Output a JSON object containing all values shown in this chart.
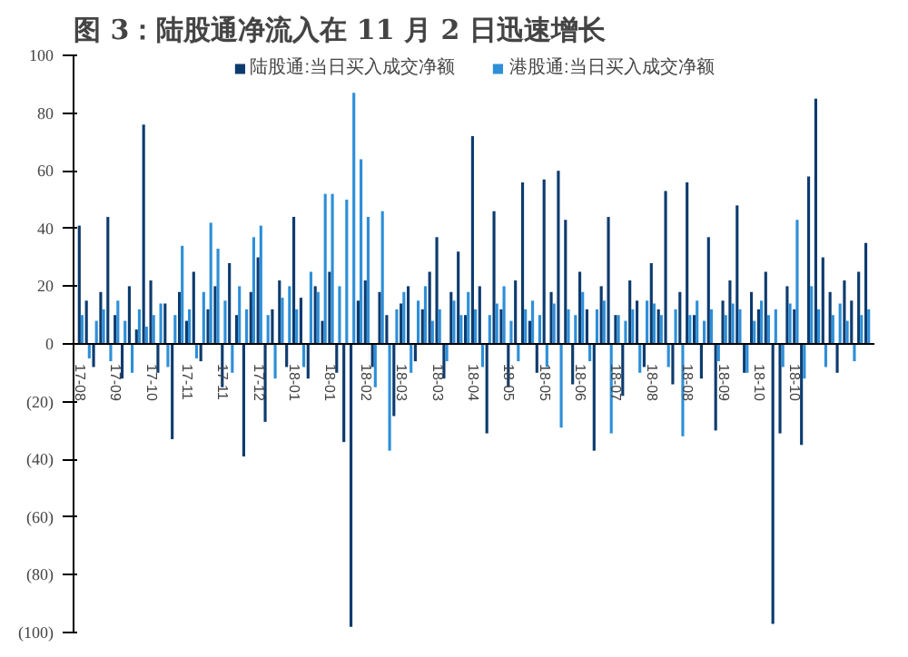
{
  "chart_data": {
    "type": "bar",
    "title": "图 3：陆股通净流入在 11 月 2 日迅速增长",
    "categories": [
      "17-08",
      null,
      null,
      null,
      null,
      "17-09",
      null,
      null,
      null,
      null,
      "17-10",
      null,
      null,
      null,
      null,
      "17-11",
      null,
      null,
      null,
      null,
      "17-11",
      null,
      null,
      null,
      null,
      "17-12",
      null,
      null,
      null,
      null,
      "18-01",
      null,
      null,
      null,
      null,
      "18-01",
      null,
      null,
      null,
      null,
      "18-02",
      null,
      null,
      null,
      null,
      "18-03",
      null,
      null,
      null,
      null,
      "18-03",
      null,
      null,
      null,
      null,
      "18-04",
      null,
      null,
      null,
      null,
      "18-05",
      null,
      null,
      null,
      null,
      "18-05",
      null,
      null,
      null,
      null,
      "18-06",
      null,
      null,
      null,
      null,
      "18-07",
      null,
      null,
      null,
      null,
      "18-08",
      null,
      null,
      null,
      null,
      "18-08",
      null,
      null,
      null,
      null,
      "18-09",
      null,
      null,
      null,
      null,
      "18-10",
      null,
      null,
      null,
      null,
      "18-10",
      null,
      null,
      null,
      null,
      null,
      null,
      null,
      null,
      null,
      null
    ],
    "series": [
      {
        "name": "陆股通:当日买入成交净额",
        "color": "#0d3b6e",
        "values": [
          41,
          15,
          -8,
          18,
          44,
          10,
          -12,
          20,
          5,
          76,
          22,
          -10,
          14,
          -33,
          18,
          8,
          25,
          -6,
          12,
          20,
          -15,
          28,
          10,
          -39,
          18,
          30,
          -27,
          12,
          22,
          -8,
          44,
          16,
          -12,
          20,
          8,
          25,
          -10,
          -34,
          -98,
          15,
          22,
          -8,
          18,
          10,
          -25,
          14,
          20,
          -6,
          12,
          25,
          37,
          -12,
          18,
          32,
          10,
          72,
          20,
          -31,
          46,
          12,
          -15,
          22,
          56,
          8,
          -10,
          57,
          18,
          60,
          43,
          -14,
          25,
          12,
          -37,
          20,
          44,
          10,
          -18,
          22,
          15,
          -8,
          28,
          12,
          53,
          -14,
          18,
          56,
          10,
          -12,
          37,
          -30,
          15,
          22,
          48,
          -10,
          18,
          12,
          25,
          -97,
          -31,
          20,
          12,
          -35,
          58,
          85,
          30,
          18,
          -10,
          22,
          15,
          25,
          35
        ]
      },
      {
        "name": "港股通:当日买入成交净额",
        "color": "#2e8fd8",
        "values": [
          10,
          -5,
          8,
          12,
          -6,
          15,
          8,
          -10,
          12,
          6,
          10,
          14,
          -8,
          10,
          34,
          12,
          -5,
          18,
          42,
          33,
          15,
          -10,
          20,
          12,
          37,
          41,
          10,
          -12,
          16,
          20,
          12,
          -8,
          25,
          18,
          52,
          52,
          20,
          50,
          87,
          64,
          44,
          -15,
          46,
          -37,
          12,
          18,
          -10,
          15,
          20,
          8,
          12,
          -6,
          15,
          10,
          18,
          12,
          -8,
          10,
          14,
          20,
          8,
          -6,
          12,
          15,
          10,
          -8,
          14,
          -29,
          12,
          10,
          18,
          -6,
          12,
          15,
          -31,
          10,
          8,
          12,
          -10,
          15,
          14,
          10,
          -8,
          12,
          -32,
          10,
          15,
          8,
          12,
          -6,
          10,
          14,
          12,
          -10,
          8,
          15,
          10,
          12,
          -8,
          14,
          43,
          -12,
          20,
          12,
          -8,
          10,
          14,
          8,
          -6,
          10,
          12
        ]
      }
    ],
    "ylim": [
      -100,
      100
    ],
    "yticks": [
      {
        "value": -100,
        "label": "(100)"
      },
      {
        "value": -80,
        "label": "(80)"
      },
      {
        "value": -60,
        "label": "(60)"
      },
      {
        "value": -40,
        "label": "(40)"
      },
      {
        "value": -20,
        "label": "(20)"
      },
      0,
      20,
      40,
      60,
      80,
      100
    ],
    "legend": "top",
    "grid": false
  }
}
